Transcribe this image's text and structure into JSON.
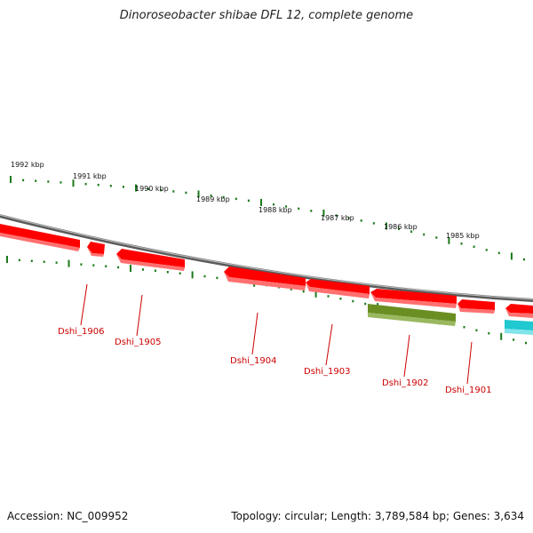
{
  "title": "Dinoroseobacter shibae DFL 12, complete genome",
  "footer": {
    "accession": "Accession: NC_009952",
    "summary": "Topology: circular; Length: 3,789,584 bp; Genes: 3,634"
  },
  "scale": {
    "unit": "kbp",
    "labels": [
      "1992 kbp",
      "1991 kbp",
      "1990 kbp",
      "1989 kbp",
      "1988 kbp",
      "1987 kbp",
      "1986 kbp",
      "1985 kbp"
    ]
  },
  "genes": [
    {
      "label": "Dshi_1906",
      "strand": "reverse",
      "color": "#ff0000"
    },
    {
      "label": "Dshi_1905",
      "strand": "reverse",
      "color": "#ff0000"
    },
    {
      "label": "Dshi_1904",
      "strand": "reverse",
      "color": "#ff0000"
    },
    {
      "label": "Dshi_1903",
      "strand": "reverse",
      "color": "#ff0000"
    },
    {
      "label": "Dshi_1902",
      "strand": "forward",
      "color": "#6b8e23"
    },
    {
      "label": "Dshi_1901",
      "strand": "reverse",
      "color": "#ff0000"
    }
  ],
  "colors": {
    "backbone": "#808080",
    "ticks": "#1a7a1a",
    "cds": "#ff0000",
    "rna": "#6b8e23",
    "other": "#20c8d0",
    "gene_label": "#cc0000"
  }
}
